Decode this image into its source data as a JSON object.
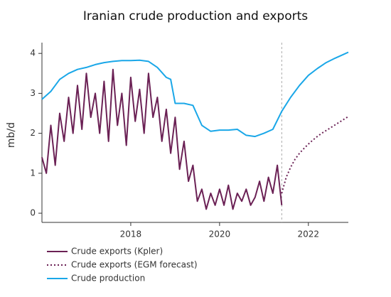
{
  "chart_data": {
    "type": "line",
    "title": "Iranian crude production and exports",
    "y_label": "mb/d",
    "xlim": [
      2016.0,
      2022.9
    ],
    "xticks": [
      2018,
      2020,
      2022
    ],
    "ylim": [
      -0.23,
      4.27
    ],
    "yticks": [
      0,
      1,
      2,
      3,
      4
    ],
    "vline_x": 2021.4,
    "series": [
      {
        "name": "Crude exports (Kpler)",
        "color": "#6b2155",
        "dash": false,
        "x": [
          2016.0,
          2016.1,
          2016.2,
          2016.3,
          2016.4,
          2016.5,
          2016.6,
          2016.7,
          2016.8,
          2016.9,
          2017.0,
          2017.1,
          2017.2,
          2017.3,
          2017.4,
          2017.5,
          2017.6,
          2017.7,
          2017.8,
          2017.9,
          2018.0,
          2018.1,
          2018.2,
          2018.3,
          2018.4,
          2018.5,
          2018.6,
          2018.7,
          2018.8,
          2018.9,
          2019.0,
          2019.1,
          2019.2,
          2019.3,
          2019.4,
          2019.5,
          2019.6,
          2019.7,
          2019.8,
          2019.9,
          2020.0,
          2020.1,
          2020.2,
          2020.3,
          2020.4,
          2020.5,
          2020.6,
          2020.7,
          2020.8,
          2020.9,
          2021.0,
          2021.1,
          2021.2,
          2021.3,
          2021.4
        ],
        "values": [
          1.4,
          1.0,
          2.2,
          1.2,
          2.5,
          1.8,
          2.9,
          2.0,
          3.2,
          2.1,
          3.5,
          2.4,
          3.0,
          2.0,
          3.3,
          1.8,
          3.6,
          2.2,
          3.0,
          1.7,
          3.4,
          2.3,
          3.1,
          2.0,
          3.5,
          2.4,
          2.9,
          1.8,
          2.6,
          1.5,
          2.4,
          1.1,
          1.8,
          0.8,
          1.2,
          0.3,
          0.6,
          0.1,
          0.5,
          0.2,
          0.6,
          0.2,
          0.7,
          0.1,
          0.5,
          0.3,
          0.6,
          0.2,
          0.4,
          0.8,
          0.3,
          0.9,
          0.5,
          1.2,
          0.2
        ]
      },
      {
        "name": "Crude exports (EGM forecast)",
        "color": "#6b2155",
        "dash": true,
        "x": [
          2021.4,
          2021.5,
          2021.6,
          2021.7,
          2021.8,
          2021.9,
          2022.0,
          2022.1,
          2022.2,
          2022.3,
          2022.4,
          2022.5,
          2022.6,
          2022.7,
          2022.8,
          2022.9
        ],
        "values": [
          0.5,
          0.9,
          1.15,
          1.35,
          1.5,
          1.62,
          1.73,
          1.83,
          1.92,
          2.0,
          2.07,
          2.14,
          2.21,
          2.28,
          2.35,
          2.42
        ]
      },
      {
        "name": "Crude production",
        "color": "#1aa7e8",
        "dash": false,
        "x": [
          2016.0,
          2016.2,
          2016.4,
          2016.6,
          2016.8,
          2017.0,
          2017.2,
          2017.4,
          2017.6,
          2017.8,
          2018.0,
          2018.2,
          2018.4,
          2018.6,
          2018.8,
          2018.9,
          2019.0,
          2019.2,
          2019.4,
          2019.6,
          2019.8,
          2020.0,
          2020.2,
          2020.4,
          2020.6,
          2020.8,
          2021.0,
          2021.2,
          2021.4,
          2021.6,
          2021.8,
          2022.0,
          2022.2,
          2022.4,
          2022.6,
          2022.8,
          2022.9
        ],
        "values": [
          2.85,
          3.05,
          3.35,
          3.5,
          3.6,
          3.65,
          3.72,
          3.77,
          3.8,
          3.82,
          3.82,
          3.83,
          3.8,
          3.65,
          3.4,
          3.35,
          2.75,
          2.75,
          2.7,
          2.2,
          2.05,
          2.08,
          2.08,
          2.1,
          1.95,
          1.92,
          2.0,
          2.1,
          2.55,
          2.9,
          3.2,
          3.45,
          3.62,
          3.77,
          3.88,
          3.98,
          4.03
        ]
      }
    ]
  }
}
